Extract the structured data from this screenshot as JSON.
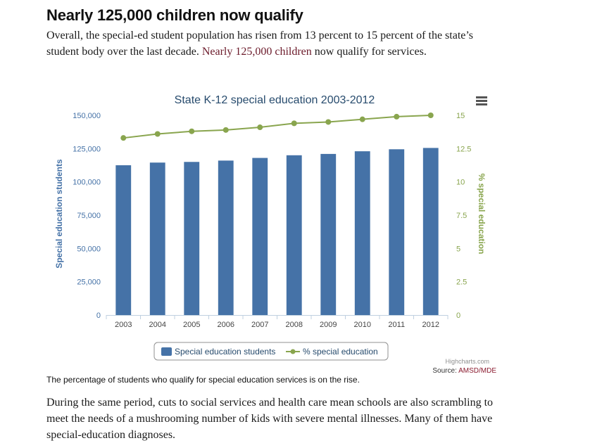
{
  "article": {
    "headline": "Nearly 125,000 children now qualify",
    "intro_before": "Overall, the special-ed student population has risen from 13 percent to 15 percent of the state’s student body over the last decade. ",
    "intro_link": "Nearly 125,000 children",
    "intro_after": " now qualify for services.",
    "caption": "The percentage of students who qualify for special education services is on the rise.",
    "body": "During the same period, cuts to social services and health care mean schools are also scrambling to meet the needs of a mushrooming number of kids with severe mental illnesses. Many of them have special-education diagnoses."
  },
  "credits": {
    "highcharts": "Highcharts.com",
    "source_label": "Source: ",
    "source_link": "AMSD/MDE"
  },
  "colors": {
    "bar": "#4572a7",
    "line": "#89a54e",
    "title": "#274b6d"
  },
  "chart_data": {
    "type": "bar",
    "title": "State K-12 special education 2003-2012",
    "categories": [
      "2003",
      "2004",
      "2005",
      "2006",
      "2007",
      "2008",
      "2009",
      "2010",
      "2011",
      "2012"
    ],
    "series": [
      {
        "name": "Special education students",
        "type": "bar",
        "axis": "left",
        "values": [
          112500,
          114500,
          115000,
          116000,
          118000,
          120000,
          121000,
          123000,
          124500,
          125500
        ]
      },
      {
        "name": "% special education",
        "type": "line",
        "axis": "right",
        "values": [
          13.3,
          13.6,
          13.8,
          13.9,
          14.1,
          14.4,
          14.5,
          14.7,
          14.9,
          15.0
        ]
      }
    ],
    "y_left": {
      "label": "Special education students",
      "range": [
        0,
        150000
      ],
      "ticks": [
        "0",
        "25,000",
        "50,000",
        "75,000",
        "100,000",
        "125,000",
        "150,000"
      ]
    },
    "y_right": {
      "label": "% special education",
      "range": [
        0,
        15
      ],
      "ticks": [
        "0",
        "2.5",
        "5",
        "7.5",
        "10",
        "12.5",
        "15"
      ]
    },
    "grid": false,
    "legend": "bottom-center"
  }
}
